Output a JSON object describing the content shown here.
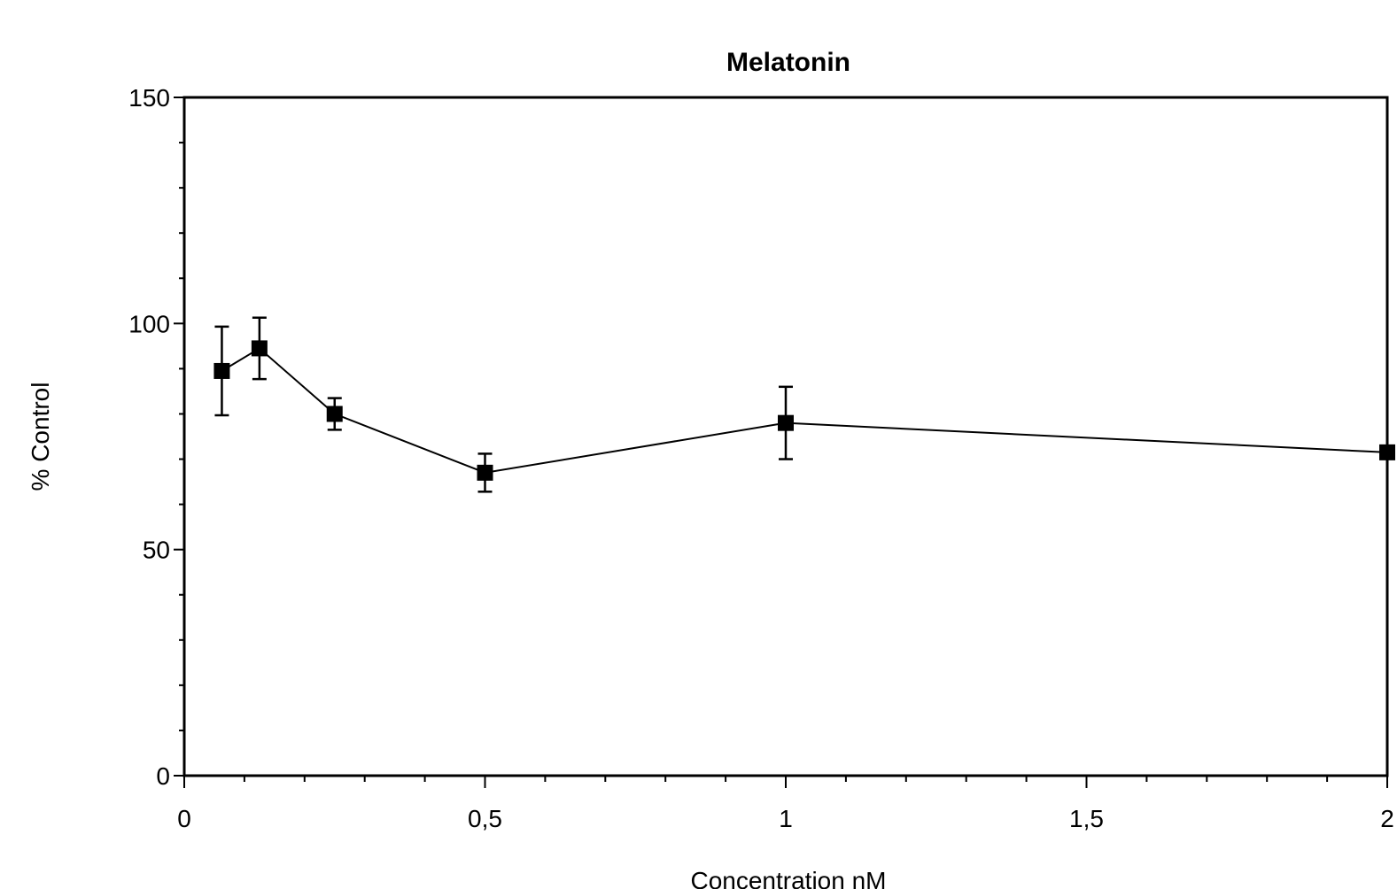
{
  "chart_data": {
    "type": "line",
    "title": "Melatonin",
    "xlabel": "Concentration nM",
    "ylabel": "% Control",
    "xlim": [
      0,
      2
    ],
    "ylim": [
      0,
      150
    ],
    "x_ticks": [
      0,
      0.5,
      1,
      1.5,
      2
    ],
    "x_tick_labels": [
      "0",
      "0,5",
      "1",
      "1,5",
      "2"
    ],
    "y_ticks": [
      0,
      50,
      100,
      150
    ],
    "y_tick_labels": [
      "0",
      "50",
      "100",
      "150"
    ],
    "grid": false,
    "legend": "none",
    "series": [
      {
        "x": [
          0.0625,
          0.125,
          0.25,
          0.5,
          1,
          2
        ],
        "y": [
          89.5,
          94.5,
          80.0,
          67.0,
          78.0,
          71.5
        ],
        "error": [
          9.8,
          6.8,
          3.5,
          4.2,
          8.0,
          0
        ],
        "marker": "square",
        "color": "#000000"
      }
    ]
  }
}
